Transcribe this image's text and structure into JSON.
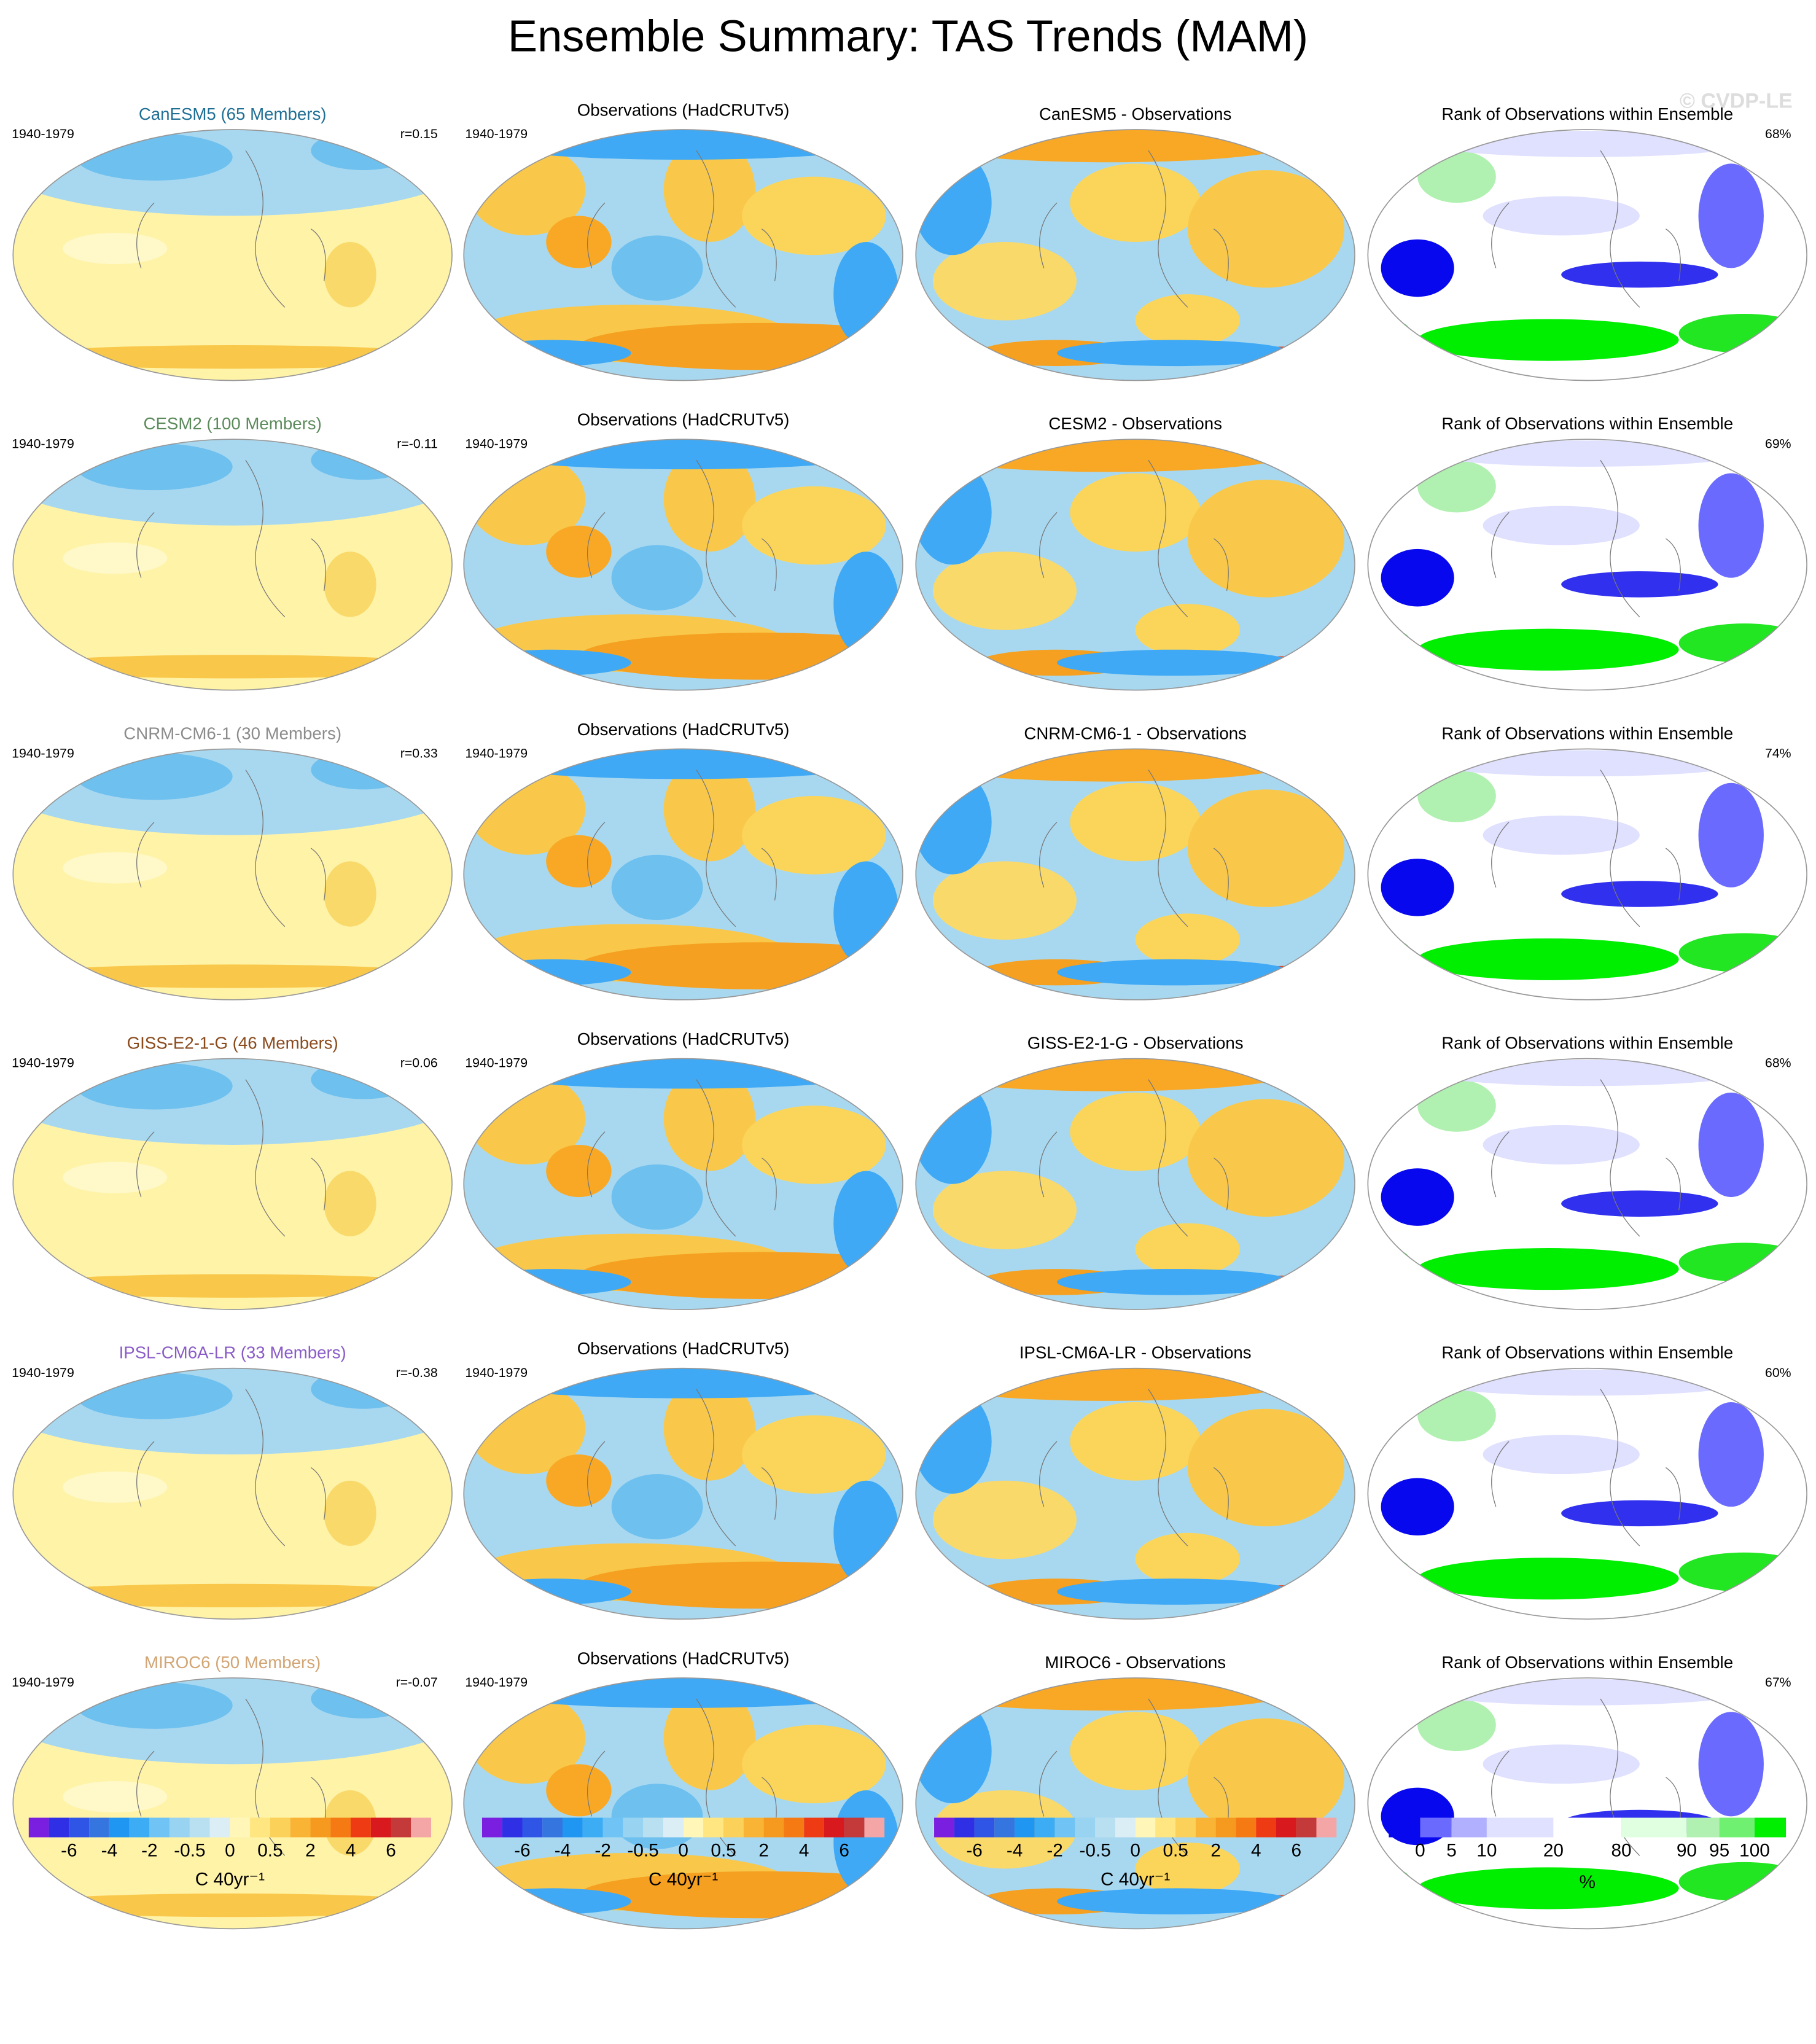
{
  "title": "Ensemble Summary: TAS Trends (MAM)",
  "watermark": "© CVDP-LE",
  "rows": [
    {
      "model_title": "CanESM5 (65 Members)",
      "model_color": "#1f6f94",
      "period": "1940-1979",
      "r": "r=0.15",
      "obs_period": "1940-1979",
      "obs_title": "Observations (HadCRUTv5)",
      "diff_title": "CanESM5 - Observations",
      "rank_title": "Rank of Observations within Ensemble",
      "rank_pct": "68%"
    },
    {
      "model_title": "CESM2 (100 Members)",
      "model_color": "#5b8a5b",
      "period": "1940-1979",
      "r": "r=-0.11",
      "obs_period": "1940-1979",
      "obs_title": "Observations (HadCRUTv5)",
      "diff_title": "CESM2 - Observations",
      "rank_title": "Rank of Observations within Ensemble",
      "rank_pct": "69%"
    },
    {
      "model_title": "CNRM-CM6-1 (30 Members)",
      "model_color": "#8c8c8c",
      "period": "1940-1979",
      "r": "r=0.33",
      "obs_period": "1940-1979",
      "obs_title": "Observations (HadCRUTv5)",
      "diff_title": "CNRM-CM6-1 - Observations",
      "rank_title": "Rank of Observations within Ensemble",
      "rank_pct": "74%"
    },
    {
      "model_title": "GISS-E2-1-G (46 Members)",
      "model_color": "#8a4a1c",
      "period": "1940-1979",
      "r": "r=0.06",
      "obs_period": "1940-1979",
      "obs_title": "Observations (HadCRUTv5)",
      "diff_title": "GISS-E2-1-G - Observations",
      "rank_title": "Rank of Observations within Ensemble",
      "rank_pct": "68%"
    },
    {
      "model_title": "IPSL-CM6A-LR (33 Members)",
      "model_color": "#8a5cc8",
      "period": "1940-1979",
      "r": "r=-0.38",
      "obs_period": "1940-1979",
      "obs_title": "Observations (HadCRUTv5)",
      "diff_title": "IPSL-CM6A-LR - Observations",
      "rank_title": "Rank of Observations within Ensemble",
      "rank_pct": "60%"
    },
    {
      "model_title": "MIROC6 (50 Members)",
      "model_color": "#d2a574",
      "period": "1940-1979",
      "r": "r=-0.07",
      "obs_period": "1940-1979",
      "obs_title": "Observations (HadCRUTv5)",
      "diff_title": "MIROC6 - Observations",
      "rank_title": "Rank of Observations within Ensemble",
      "rank_pct": "67%"
    }
  ],
  "colorbars": [
    {
      "ticks": [
        "-6",
        "-4",
        "-2",
        "-0.5",
        "0",
        "0.5",
        "2",
        "4",
        "6"
      ],
      "label": "C 40yr⁻¹"
    },
    {
      "ticks": [
        "-6",
        "-4",
        "-2",
        "-0.5",
        "0",
        "0.5",
        "2",
        "4",
        "6"
      ],
      "label": "C 40yr⁻¹"
    },
    {
      "ticks": [
        "-6",
        "-4",
        "-2",
        "-0.5",
        "0",
        "0.5",
        "2",
        "4",
        "6"
      ],
      "label": "C 40yr⁻¹"
    },
    {
      "ticks": [
        "0",
        "5",
        "10",
        "20",
        "80",
        "90",
        "95",
        "100"
      ],
      "label": "%"
    }
  ],
  "trend_colors": [
    "#7a1fe0",
    "#2f2fe6",
    "#2f55e6",
    "#3575e0",
    "#1f97f2",
    "#3cacf5",
    "#6fc3f5",
    "#99d3f2",
    "#b9e0f0",
    "#dbeef5",
    "#fff6b8",
    "#ffe680",
    "#fcd15a",
    "#f9b335",
    "#f59a1f",
    "#f57a14",
    "#ee3b14",
    "#d8191d",
    "#c43a3a",
    "#f4a5a5"
  ],
  "rank_colors": [
    "#0808ee",
    "#6a6aff",
    "#b0b0ff",
    "#e0e0ff",
    "#ffffff",
    "#e0ffe0",
    "#b0f0b0",
    "#70f070",
    "#00ee00"
  ]
}
